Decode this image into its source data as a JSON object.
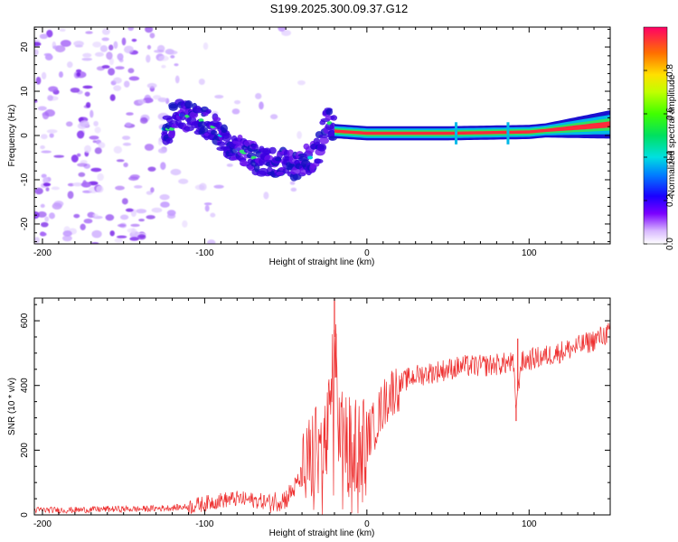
{
  "title": "S199.2025.300.09.37.G12",
  "chart_data": [
    {
      "type": "heatmap",
      "name": "spectrogram",
      "xlabel": "Height of straight line (km)",
      "ylabel": "Frequency (Hz)",
      "xlim": [
        -205,
        150
      ],
      "ylim": [
        -24.5,
        24.5
      ],
      "xticks": [
        -200,
        -100,
        0,
        100
      ],
      "yticks": [
        -20,
        -10,
        0,
        10,
        20
      ],
      "colorbar": {
        "label": "Normalized spectral amplitude",
        "range": [
          0,
          1
        ],
        "ticks": [
          0.0,
          0.2,
          0.4,
          0.6,
          0.8
        ],
        "tick_labels": [
          "0.0",
          "0.2",
          "0.4",
          "0.6",
          "0.8"
        ]
      },
      "ridge": [
        {
          "x": -120,
          "y": 5
        },
        {
          "x": -105,
          "y": 4
        },
        {
          "x": -95,
          "y": 2
        },
        {
          "x": -85,
          "y": -2
        },
        {
          "x": -75,
          "y": -4
        },
        {
          "x": -65,
          "y": -6
        },
        {
          "x": -55,
          "y": -6
        },
        {
          "x": -45,
          "y": -7
        },
        {
          "x": -35,
          "y": -5
        },
        {
          "x": -30,
          "y": -3
        },
        {
          "x": -25,
          "y": 4
        },
        {
          "x": -20,
          "y": 1
        },
        {
          "x": 0,
          "y": 0.5
        },
        {
          "x": 50,
          "y": 0.5
        },
        {
          "x": 100,
          "y": 0.8
        },
        {
          "x": 150,
          "y": 1.5
        }
      ]
    },
    {
      "type": "line",
      "name": "snr",
      "xlabel": "Height of straight line (km)",
      "ylabel": "SNR (10 * v/v)",
      "xlim": [
        -205,
        150
      ],
      "ylim": [
        0,
        670
      ],
      "xticks": [
        -200,
        -100,
        0,
        100
      ],
      "yticks": [
        0,
        200,
        400,
        600
      ],
      "color": "#ee3030",
      "series": [
        {
          "name": "SNR",
          "x": [
            -205,
            -180,
            -160,
            -140,
            -120,
            -110,
            -100,
            -90,
            -80,
            -70,
            -60,
            -50,
            -45,
            -40,
            -35,
            -30,
            -25,
            -22,
            -20,
            -18,
            -15,
            -10,
            -5,
            0,
            5,
            10,
            15,
            20,
            25,
            30,
            40,
            50,
            60,
            70,
            80,
            90,
            92,
            95,
            100,
            110,
            120,
            130,
            140,
            150
          ],
          "values": [
            15,
            15,
            18,
            18,
            22,
            25,
            35,
            45,
            50,
            45,
            40,
            50,
            80,
            120,
            170,
            200,
            220,
            350,
            550,
            300,
            250,
            220,
            230,
            240,
            280,
            340,
            380,
            400,
            420,
            430,
            440,
            450,
            460,
            460,
            465,
            470,
            340,
            470,
            480,
            490,
            505,
            520,
            540,
            565
          ]
        }
      ],
      "spikes": [
        {
          "x": -20,
          "y": 670
        },
        {
          "x": -19,
          "y": 560
        },
        {
          "x": 92,
          "y": 290
        },
        {
          "x": 93,
          "y": 545
        }
      ]
    }
  ]
}
